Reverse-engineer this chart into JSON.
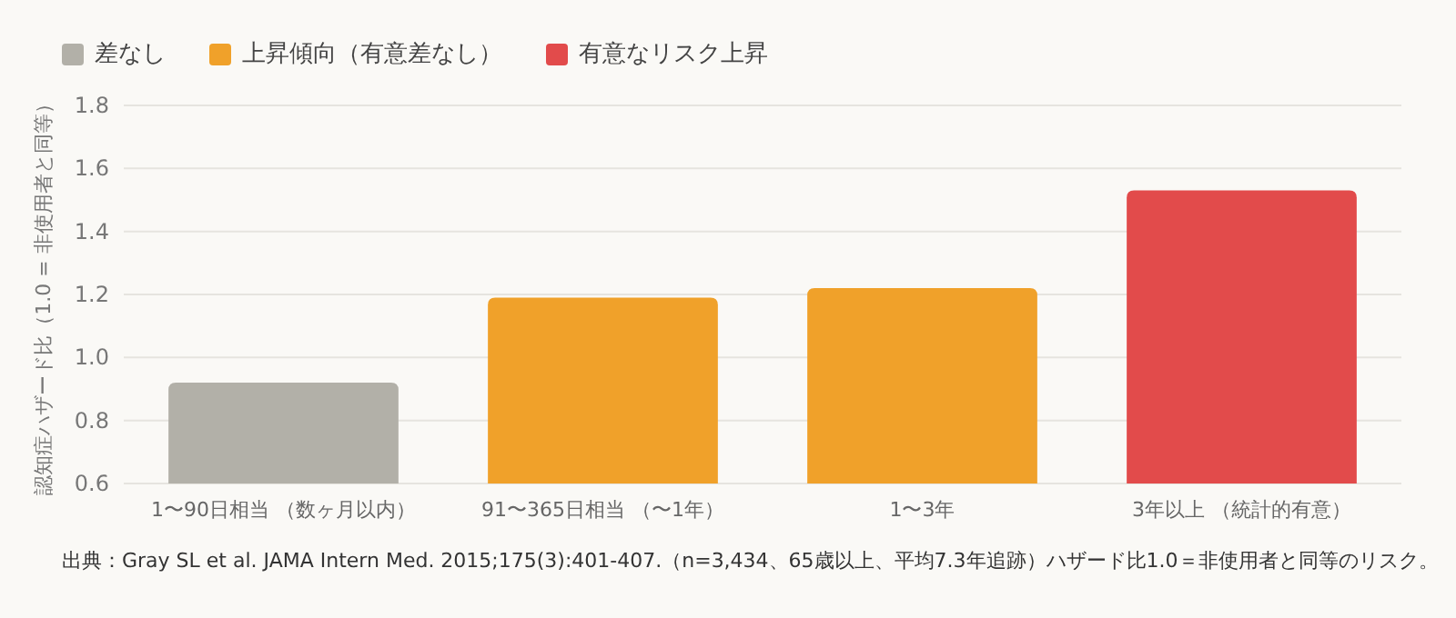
{
  "chart_data": {
    "type": "bar",
    "categories": [
      "1〜90日相当 （数ヶ月以内）",
      "91〜365日相当 （〜1年）",
      "1〜3年",
      "3年以上 （統計的有意）"
    ],
    "series": [
      {
        "name": "差なし",
        "color": "#b2b0a8",
        "values": [
          0.92,
          null,
          null,
          null
        ]
      },
      {
        "name": "上昇傾向（有意差なし）",
        "color": "#f0a12a",
        "values": [
          null,
          1.19,
          1.22,
          null
        ]
      },
      {
        "name": "有意なリスク上昇",
        "color": "#e24b4b",
        "values": [
          null,
          null,
          null,
          1.53
        ]
      }
    ],
    "ylabel": "認知症ハザード比（1.0 = 非使用者と同等）",
    "ylim": [
      0.6,
      1.8
    ],
    "yticks": [
      0.6,
      0.8,
      {
        "value": 1,
        "label": "1.0"
      },
      1.2,
      1.4,
      1.6,
      1.8
    ],
    "grid": "y",
    "legend": "top left",
    "annotations": [
      "出典：Gray SL et al. JAMA Intern Med. 2015;175(3):401-407.（n=3,434、65歳以上、平均7.3年追跡）ハザード比1.0＝非使用者と同等のリスク。"
    ]
  }
}
